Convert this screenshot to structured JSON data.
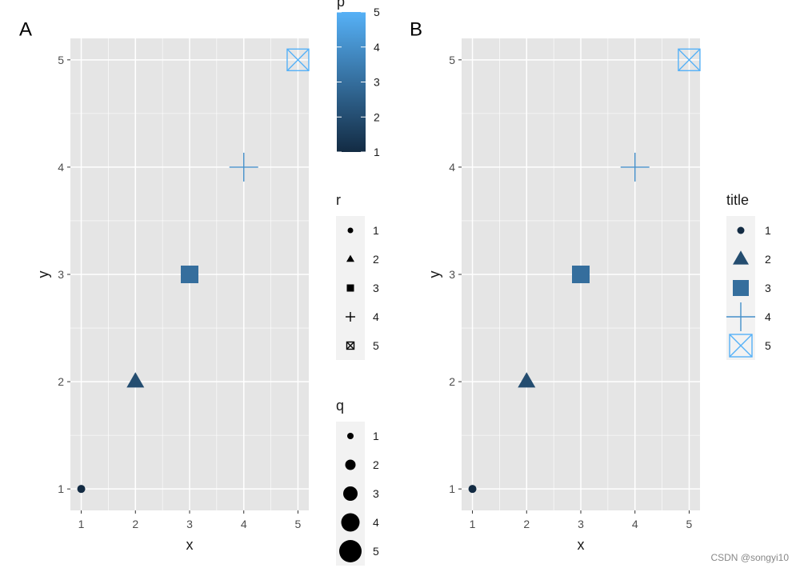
{
  "watermark": "CSDN @songyi10",
  "colors": {
    "panel_bg": "#e5e5e5",
    "grid": "#ffffff",
    "axis_text": "#4d4d4d",
    "text": "#1a1a1a",
    "scale_low": "#132b43",
    "scale_high": "#56b1f7"
  },
  "chart_data": [
    {
      "panel": "A",
      "type": "scatter",
      "xlabel": "x",
      "ylabel": "y",
      "xlim": [
        0.8,
        5.2
      ],
      "ylim": [
        0.8,
        5.2
      ],
      "x_ticks": [
        1,
        2,
        3,
        4,
        5
      ],
      "y_ticks": [
        1,
        2,
        3,
        4,
        5
      ],
      "grid": true,
      "points": [
        {
          "x": 1,
          "y": 1,
          "p": 1,
          "r": "1",
          "q": 1,
          "shape": "circle"
        },
        {
          "x": 2,
          "y": 2,
          "p": 2,
          "r": "2",
          "q": 2,
          "shape": "triangle"
        },
        {
          "x": 3,
          "y": 3,
          "p": 3,
          "r": "3",
          "q": 3,
          "shape": "square"
        },
        {
          "x": 4,
          "y": 4,
          "p": 4,
          "r": "4",
          "q": 4,
          "shape": "plus"
        },
        {
          "x": 5,
          "y": 5,
          "p": 5,
          "r": "5",
          "q": 5,
          "shape": "boxcross"
        }
      ],
      "legends": {
        "color": {
          "title": "p",
          "type": "colorbar",
          "ticks": [
            1,
            2,
            3,
            4,
            5
          ],
          "range": [
            1,
            5
          ]
        },
        "shape": {
          "title": "r",
          "labels": [
            "1",
            "2",
            "3",
            "4",
            "5"
          ],
          "shapes": [
            "circle",
            "triangle",
            "square",
            "plus",
            "boxcross"
          ]
        },
        "size": {
          "title": "q",
          "labels": [
            "1",
            "2",
            "3",
            "4",
            "5"
          ],
          "values": [
            1,
            2,
            3,
            4,
            5
          ]
        }
      }
    },
    {
      "panel": "B",
      "type": "scatter",
      "xlabel": "x",
      "ylabel": "y",
      "xlim": [
        0.8,
        5.2
      ],
      "ylim": [
        0.8,
        5.2
      ],
      "x_ticks": [
        1,
        2,
        3,
        4,
        5
      ],
      "y_ticks": [
        1,
        2,
        3,
        4,
        5
      ],
      "grid": true,
      "points": [
        {
          "x": 1,
          "y": 1,
          "p": 1,
          "r": "1",
          "q": 1,
          "shape": "circle"
        },
        {
          "x": 2,
          "y": 2,
          "p": 2,
          "r": "2",
          "q": 2,
          "shape": "triangle"
        },
        {
          "x": 3,
          "y": 3,
          "p": 3,
          "r": "3",
          "q": 3,
          "shape": "square"
        },
        {
          "x": 4,
          "y": 4,
          "p": 4,
          "r": "4",
          "q": 4,
          "shape": "plus"
        },
        {
          "x": 5,
          "y": 5,
          "p": 5,
          "r": "5",
          "q": 5,
          "shape": "boxcross"
        }
      ],
      "legends": {
        "combined": {
          "title": "title",
          "labels": [
            "1",
            "2",
            "3",
            "4",
            "5"
          ],
          "shapes": [
            "circle",
            "triangle",
            "square",
            "plus",
            "boxcross"
          ],
          "colors": [
            1,
            2,
            3,
            4,
            5
          ],
          "sizes": [
            1,
            2,
            3,
            4,
            5
          ]
        }
      }
    }
  ]
}
